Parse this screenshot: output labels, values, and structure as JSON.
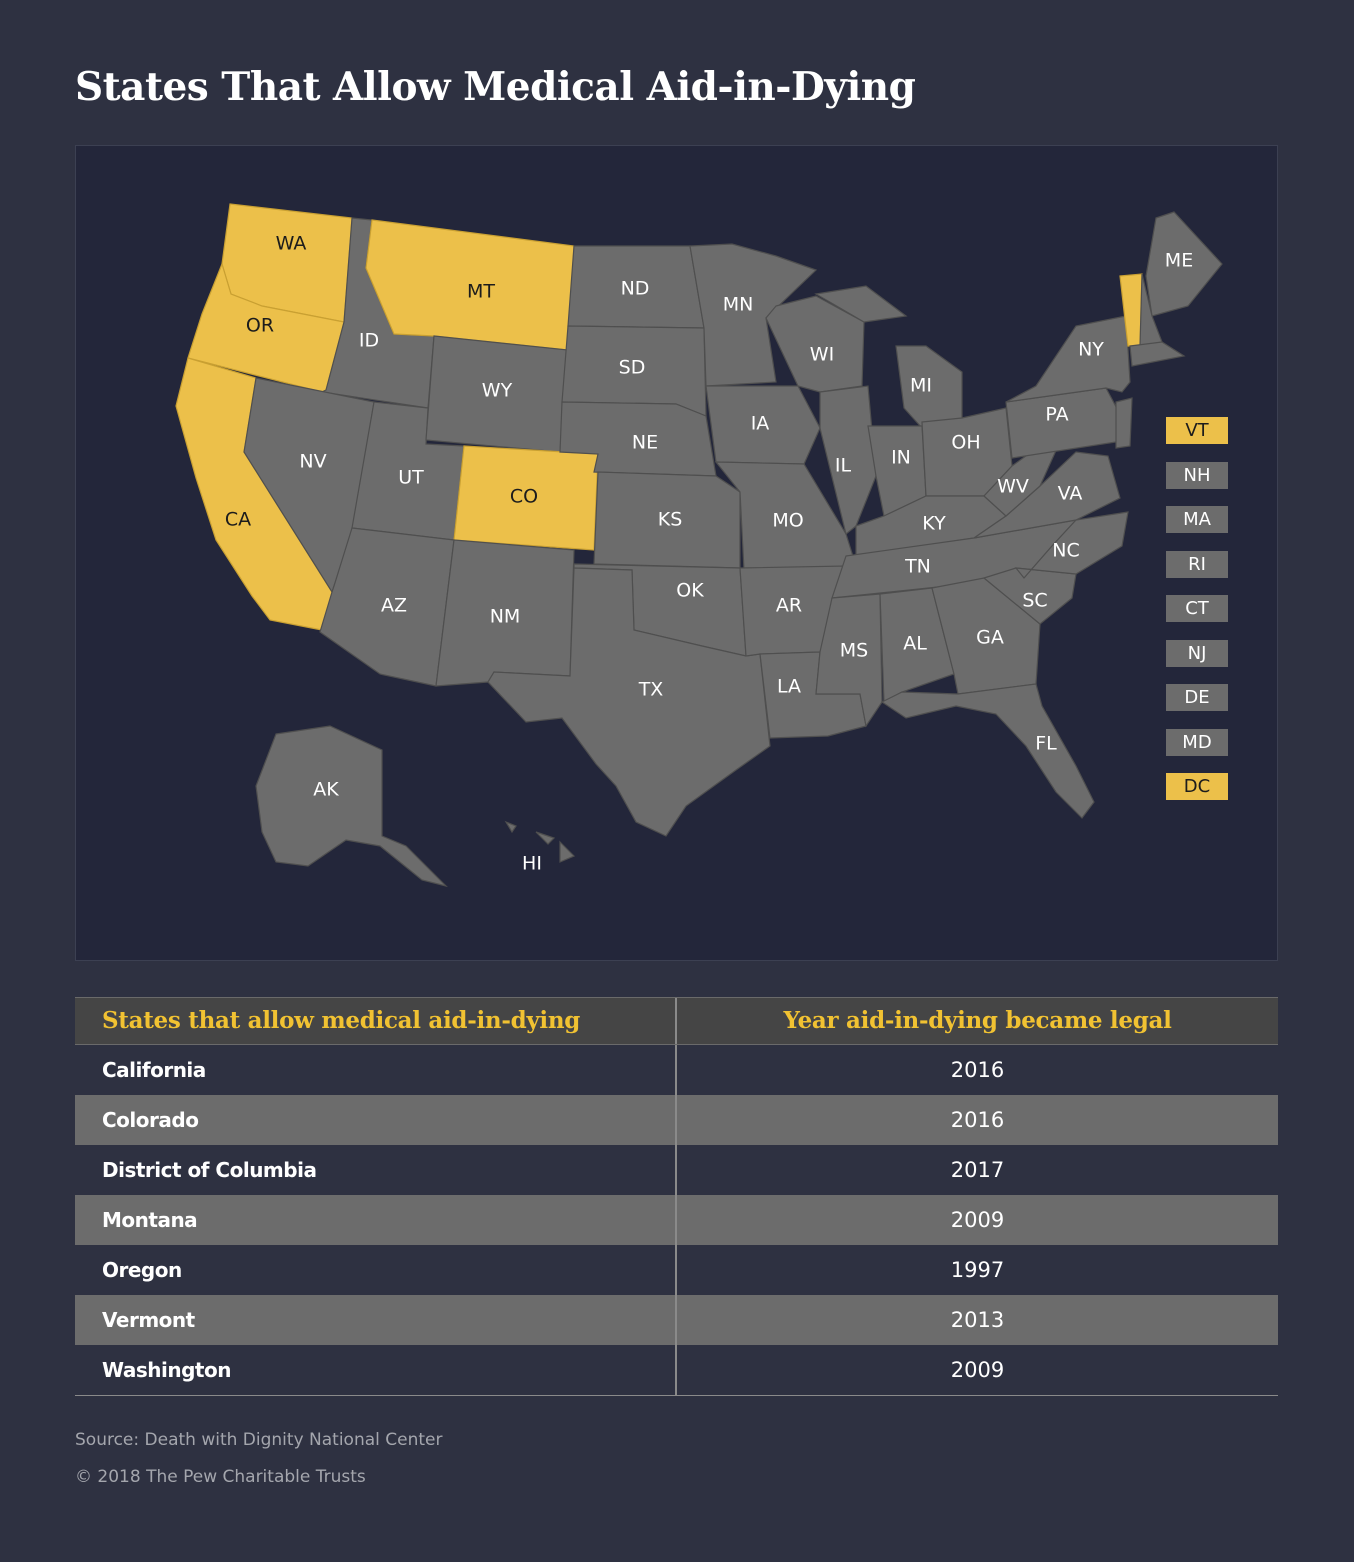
{
  "title": "States That Allow Medical Aid-in-Dying",
  "colors": {
    "background": "#2e3141",
    "map_background": "#23263a",
    "state_allowed": "#ecc04a",
    "state_not_allowed": "#6c6c6c",
    "header_text": "#f1c232"
  },
  "map": {
    "state_labels": {
      "WA": "WA",
      "OR": "OR",
      "CA": "CA",
      "MT": "MT",
      "CO": "CO",
      "ID": "ID",
      "NV": "NV",
      "UT": "UT",
      "AZ": "AZ",
      "WY": "WY",
      "NM": "NM",
      "ND": "ND",
      "SD": "SD",
      "NE": "NE",
      "KS": "KS",
      "OK": "OK",
      "TX": "TX",
      "MN": "MN",
      "IA": "IA",
      "MO": "MO",
      "AR": "AR",
      "LA": "LA",
      "WI": "WI",
      "IL": "IL",
      "MI": "MI",
      "IN": "IN",
      "OH": "OH",
      "KY": "KY",
      "TN": "TN",
      "MS": "MS",
      "AL": "AL",
      "GA": "GA",
      "FL": "FL",
      "SC": "SC",
      "NC": "NC",
      "VA": "VA",
      "WV": "WV",
      "PA": "PA",
      "NY": "NY",
      "ME": "ME",
      "AK": "AK",
      "HI": "HI"
    },
    "allowed_states": [
      "WA",
      "OR",
      "CA",
      "MT",
      "CO",
      "VT",
      "DC"
    ],
    "small_state_boxes": [
      {
        "label": "VT",
        "allowed": true
      },
      {
        "label": "NH",
        "allowed": false
      },
      {
        "label": "MA",
        "allowed": false
      },
      {
        "label": "RI",
        "allowed": false
      },
      {
        "label": "CT",
        "allowed": false
      },
      {
        "label": "NJ",
        "allowed": false
      },
      {
        "label": "DE",
        "allowed": false
      },
      {
        "label": "MD",
        "allowed": false
      },
      {
        "label": "DC",
        "allowed": true
      }
    ]
  },
  "table": {
    "headers": [
      "States that allow medical aid-in-dying",
      "Year aid-in-dying became legal"
    ],
    "rows": [
      {
        "state": "California",
        "year": "2016"
      },
      {
        "state": "Colorado",
        "year": "2016"
      },
      {
        "state": "District of Columbia",
        "year": "2017"
      },
      {
        "state": "Montana",
        "year": "2009"
      },
      {
        "state": "Oregon",
        "year": "1997"
      },
      {
        "state": "Vermont",
        "year": "2013"
      },
      {
        "state": "Washington",
        "year": "2009"
      }
    ]
  },
  "footer": {
    "source": "Source: Death with Dignity National Center",
    "copyright": "© 2018 The Pew Charitable Trusts"
  }
}
